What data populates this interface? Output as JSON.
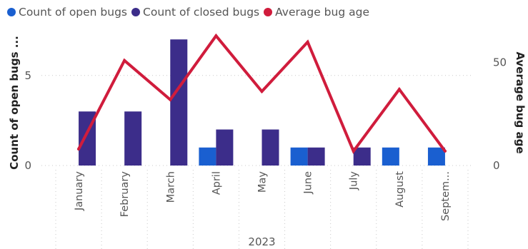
{
  "legend": [
    {
      "label": "Count of open bugs",
      "color": "#1a5fd0"
    },
    {
      "label": "Count of closed bugs",
      "color": "#3c2d8a"
    },
    {
      "label": "Average bug age",
      "color": "#d01c3c"
    }
  ],
  "axes": {
    "left_label": "Count of open bugs ...",
    "right_label": "Average bug age",
    "x_group_label": "2023"
  },
  "chart_data": {
    "type": "bar",
    "categories": [
      "January",
      "February",
      "March",
      "April",
      "May",
      "June",
      "July",
      "August",
      "Septem..."
    ],
    "series": [
      {
        "name": "Count of open bugs",
        "type": "bar",
        "axis": "left",
        "color": "#1a5fd0",
        "values": [
          0,
          0,
          0,
          1,
          0,
          1,
          0,
          1,
          1
        ]
      },
      {
        "name": "Count of closed bugs",
        "type": "bar",
        "axis": "left",
        "color": "#3c2d8a",
        "values": [
          3,
          3,
          7,
          2,
          2,
          1,
          1,
          0,
          0
        ]
      },
      {
        "name": "Average bug age",
        "type": "line",
        "axis": "right",
        "color": "#d01c3c",
        "values": [
          8,
          51,
          32,
          63,
          36,
          60,
          7,
          37,
          7
        ]
      }
    ],
    "ylim_left": [
      0,
      8
    ],
    "yticks_left": [
      0,
      5
    ],
    "ylim_right": [
      0,
      70
    ],
    "yticks_right": [
      0,
      50
    ],
    "grid": true,
    "legend_position": "top-left"
  }
}
